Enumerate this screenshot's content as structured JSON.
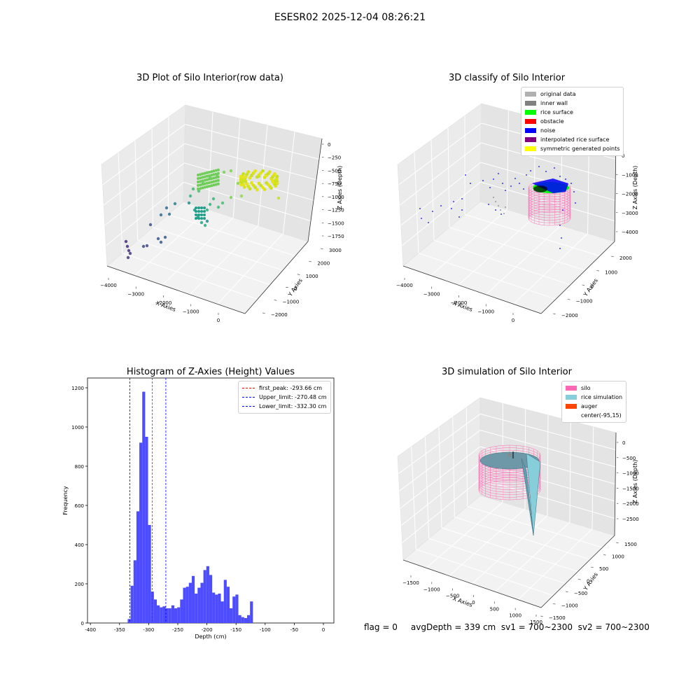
{
  "suptitle": "ESESR02 2025-12-04 08:26:21",
  "status_text": "flag = 0     avgDepth = 339 cm  sv1 = 700~2300  sv2 = 700~2300",
  "colors": {
    "hist_bar": "#4d4dff",
    "first_peak_line": "#ff0000",
    "limit_line": "#0000ff",
    "silo": "#ff69b4",
    "rice_simulation": "#87cedb",
    "auger": "#ff4500"
  },
  "chart_data": [
    {
      "type": "scatter",
      "title": "3D Plot of Silo Interior(row data)",
      "xlabel": "X Axies",
      "ylabel": "Y Axies",
      "zlabel": "Z Axies (Depth)",
      "x_ticks": [
        "−4000",
        "−3000",
        "−2000",
        "−1000",
        "0"
      ],
      "y_ticks": [
        "−2000",
        "−1000",
        "0",
        "1000",
        "2000",
        "3000"
      ],
      "z_ticks": [
        "0",
        "−250",
        "−500",
        "−750",
        "−1000",
        "−1250",
        "−1500",
        "−1750"
      ],
      "colormap": "viridis"
    },
    {
      "type": "scatter",
      "title": "3D classify of Silo Interior",
      "xlabel": "X Axies",
      "ylabel": "Y Axies",
      "zlabel": "Z Axies (Depth)",
      "x_ticks": [
        "−4000",
        "−3000",
        "−2000",
        "−1000",
        "0"
      ],
      "y_ticks": [
        "−2000",
        "−1000",
        "0",
        "1000",
        "2000"
      ],
      "z_ticks": [
        "0",
        "−1000",
        "−2000",
        "−3000",
        "−4000"
      ],
      "legend": [
        {
          "label": "original data",
          "color": "#b0b0b0"
        },
        {
          "label": "inner wall",
          "color": "#808080"
        },
        {
          "label": "rice surface",
          "color": "#00ff00"
        },
        {
          "label": "obstacle",
          "color": "#ff0000"
        },
        {
          "label": "noise",
          "color": "#0000ff"
        },
        {
          "label": "interpolated rice surface",
          "color": "#800080"
        },
        {
          "label": "symmetric generated points",
          "color": "#ffff00"
        }
      ]
    },
    {
      "type": "bar",
      "title": "Histogram of Z-Axies (Height) Values",
      "xlabel": "Depth (cm)",
      "ylabel": "Frequency",
      "xlim": [
        -405,
        18
      ],
      "ylim": [
        0,
        1250
      ],
      "x_ticks": [
        -400,
        -350,
        -300,
        -250,
        -200,
        -150,
        -100,
        -50,
        0
      ],
      "y_ticks": [
        0,
        200,
        400,
        600,
        800,
        1000,
        1200
      ],
      "bin_width": 5,
      "bins": [
        {
          "x": -336,
          "v": 20
        },
        {
          "x": -331,
          "v": 190
        },
        {
          "x": -326,
          "v": 320
        },
        {
          "x": -321,
          "v": 570
        },
        {
          "x": -316,
          "v": 920
        },
        {
          "x": -311,
          "v": 1180
        },
        {
          "x": -306,
          "v": 950
        },
        {
          "x": -301,
          "v": 500
        },
        {
          "x": -296,
          "v": 160
        },
        {
          "x": -291,
          "v": 120
        },
        {
          "x": -286,
          "v": 90
        },
        {
          "x": -281,
          "v": 80
        },
        {
          "x": -276,
          "v": 85
        },
        {
          "x": -271,
          "v": 75
        },
        {
          "x": -266,
          "v": 75
        },
        {
          "x": -261,
          "v": 90
        },
        {
          "x": -256,
          "v": 75
        },
        {
          "x": -251,
          "v": 80
        },
        {
          "x": -246,
          "v": 120
        },
        {
          "x": -241,
          "v": 180
        },
        {
          "x": -236,
          "v": 185
        },
        {
          "x": -231,
          "v": 205
        },
        {
          "x": -226,
          "v": 240
        },
        {
          "x": -221,
          "v": 150
        },
        {
          "x": -216,
          "v": 180
        },
        {
          "x": -211,
          "v": 205
        },
        {
          "x": -206,
          "v": 270
        },
        {
          "x": -201,
          "v": 290
        },
        {
          "x": -196,
          "v": 245
        },
        {
          "x": -191,
          "v": 155
        },
        {
          "x": -186,
          "v": 145
        },
        {
          "x": -181,
          "v": 150
        },
        {
          "x": -176,
          "v": 110
        },
        {
          "x": -171,
          "v": 220
        },
        {
          "x": -166,
          "v": 185
        },
        {
          "x": -161,
          "v": 75
        },
        {
          "x": -156,
          "v": 135
        },
        {
          "x": -151,
          "v": 145
        },
        {
          "x": -146,
          "v": 40
        },
        {
          "x": -141,
          "v": 30
        },
        {
          "x": -136,
          "v": 25
        },
        {
          "x": -131,
          "v": 40
        },
        {
          "x": -126,
          "v": 110
        }
      ],
      "vlines": [
        {
          "x": -293.66,
          "label": "first_peak: -293.66 cm",
          "role": "first_peak"
        },
        {
          "x": -270.48,
          "label": "Upper_limit: -270.48 cm",
          "role": "limit"
        },
        {
          "x": -332.3,
          "label": "Lower_limit: -332.30 cm",
          "role": "limit"
        }
      ]
    },
    {
      "type": "surface",
      "title": "3D simulation of Silo Interior",
      "xlabel": "X Axies",
      "ylabel": "Y Axies",
      "zlabel": "Z Axies (Depth)",
      "x_ticks": [
        "−1500",
        "−1000",
        "−500",
        "0",
        "500",
        "1000",
        "1500"
      ],
      "y_ticks": [
        "−1500",
        "−1000",
        "−500",
        "0",
        "500",
        "1000",
        "1500"
      ],
      "z_ticks": [
        "0",
        "−500",
        "−1000",
        "−1500",
        "−2000",
        "−2500"
      ],
      "legend": [
        {
          "label": "silo",
          "color": "#ff69b4"
        },
        {
          "label": "rice simulation",
          "color": "#87cedb"
        },
        {
          "label": "auger",
          "color": "#ff4500"
        },
        {
          "label": "center(-95,15)",
          "color": "#ffffff"
        }
      ]
    }
  ]
}
